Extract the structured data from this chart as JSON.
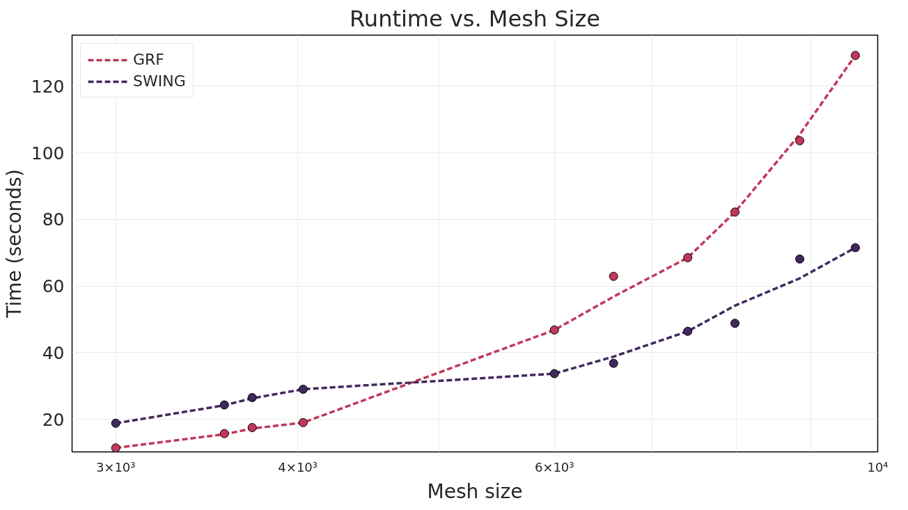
{
  "chart_data": {
    "type": "scatter",
    "title": "Runtime vs. Mesh Size",
    "xlabel": "Mesh size",
    "ylabel": "Time (seconds)",
    "log": "x",
    "xlim": [
      2800,
      10000
    ],
    "ylim": [
      10.2,
      135.3
    ],
    "xticks": [
      {
        "value": 3000,
        "label": "3×10³"
      },
      {
        "value": 4000,
        "label": "4×10³"
      },
      {
        "value": 5000,
        "label": null
      },
      {
        "value": 6000,
        "label": "6×10³"
      },
      {
        "value": 7000,
        "label": null
      },
      {
        "value": 8000,
        "label": null
      },
      {
        "value": 9000,
        "label": null
      },
      {
        "value": 10000,
        "label": "10⁴"
      }
    ],
    "yticks": [
      20,
      40,
      60,
      80,
      100,
      120
    ],
    "grid": true,
    "legend": "top left",
    "series": [
      {
        "name": "GRF",
        "type": "line",
        "line_style": "dashed",
        "marker": "none",
        "color": "#c0385a",
        "x": [
          3000,
          3562,
          3722,
          4034,
          6000,
          6588,
          7407,
          7981,
          8841,
          9653
        ],
        "values": [
          11.4,
          15.5,
          17.2,
          19.0,
          46.8,
          56.8,
          68.5,
          82.2,
          105.5,
          129.2
        ]
      },
      {
        "name": "SWING",
        "type": "line",
        "line_style": "dashed",
        "marker": "none",
        "color": "#40295c",
        "x": [
          3000,
          3562,
          3722,
          4034,
          6000,
          6588,
          7407,
          7981,
          8841,
          9653
        ],
        "values": [
          18.8,
          24.2,
          26.3,
          29.0,
          33.7,
          38.8,
          46.4,
          54.1,
          62.3,
          71.5
        ]
      },
      {
        "marker": "circle",
        "color": "#c0385a",
        "x": [
          3000,
          3562,
          3722,
          4034,
          6000,
          6588,
          7407,
          7981,
          8841,
          9653
        ],
        "values": [
          11.4,
          15.7,
          17.5,
          19.0,
          46.8,
          62.9,
          68.5,
          82.2,
          103.6,
          129.2
        ]
      },
      {
        "marker": "circle",
        "color": "#40295c",
        "x": [
          3000,
          3562,
          3722,
          4034,
          6000,
          6588,
          7407,
          7981,
          8841,
          9653
        ],
        "values": [
          18.8,
          24.3,
          26.5,
          29.0,
          33.7,
          36.8,
          46.4,
          48.8,
          68.1,
          71.5
        ]
      }
    ]
  }
}
